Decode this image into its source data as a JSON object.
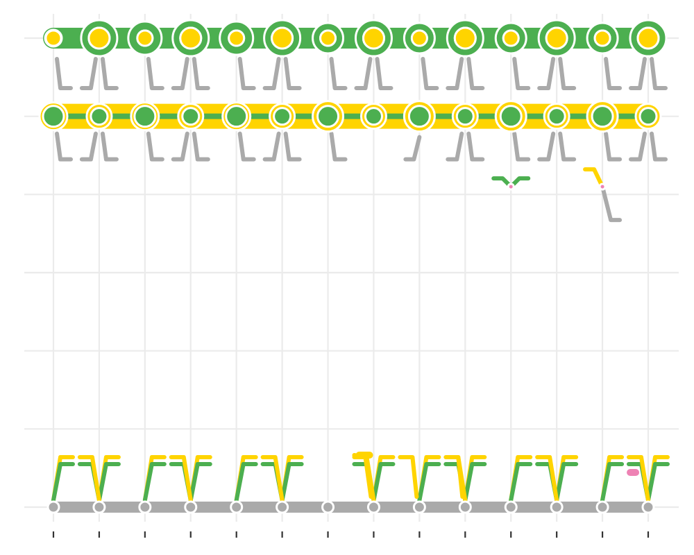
{
  "chart_data": {
    "type": "scatter",
    "title": "",
    "xlabel": "",
    "ylabel": "",
    "grid": true,
    "legend": "none",
    "xlim": [
      0.5,
      14.6
    ],
    "ylim": [
      0.3,
      7.2
    ],
    "x_ticks": [
      1,
      2,
      3,
      4,
      5,
      6,
      7,
      8,
      9,
      10,
      11,
      12,
      13,
      14
    ],
    "y_gridlines": [
      1,
      2,
      3,
      4,
      5,
      6,
      7
    ],
    "colors": {
      "green": "#4caf50",
      "yellow": "#ffd400",
      "gray": "#aaaaaa",
      "pink": "#ee82b4"
    },
    "series": [
      {
        "color": "green",
        "rows": [
          {
            "y": 7,
            "x": [
              1,
              2,
              3,
              4,
              5,
              6,
              7,
              8,
              9,
              10,
              11,
              12,
              13,
              14
            ],
            "size": [
              12,
              26,
              24,
              26,
              24,
              26,
              22,
              26,
              22,
              26,
              22,
              26,
              22,
              26
            ]
          },
          {
            "y": 6,
            "x": [
              1,
              2,
              3,
              4,
              5,
              6,
              7,
              8,
              9,
              10,
              11,
              12,
              13,
              14
            ],
            "size": [
              15,
              12,
              15,
              12,
              15,
              12,
              15,
              12,
              15,
              12,
              15,
              12,
              15,
              12
            ]
          }
        ]
      },
      {
        "color": "yellow",
        "rows": [
          {
            "y": 7,
            "x": [
              1,
              2,
              3,
              4,
              5,
              6,
              7,
              8,
              9,
              10,
              11,
              12,
              13,
              14
            ],
            "size": [
              11,
              15,
              11,
              15,
              11,
              15,
              11,
              15,
              11,
              15,
              11,
              15,
              11,
              15
            ]
          },
          {
            "y": 6,
            "x": [
              1,
              2,
              3,
              4,
              5,
              6,
              7,
              8,
              9,
              10,
              11,
              12,
              13,
              14
            ],
            "size": [
              20,
              18,
              20,
              18,
              20,
              18,
              22,
              18,
              22,
              18,
              22,
              18,
              22,
              18
            ]
          }
        ]
      },
      {
        "color": "gray",
        "rows": [
          {
            "y": 1,
            "x": [
              1,
              2,
              3,
              4,
              5,
              6,
              7,
              8,
              9,
              10,
              11,
              12,
              13,
              14
            ],
            "size": [
              8,
              8,
              8,
              8,
              8,
              8,
              8,
              8,
              8,
              8,
              8,
              8,
              8,
              8
            ]
          }
        ]
      },
      {
        "color": "pink",
        "rows": [
          {
            "y": 5.1,
            "x": [
              11,
              13
            ],
            "size": [
              4,
              4
            ]
          }
        ]
      }
    ]
  }
}
